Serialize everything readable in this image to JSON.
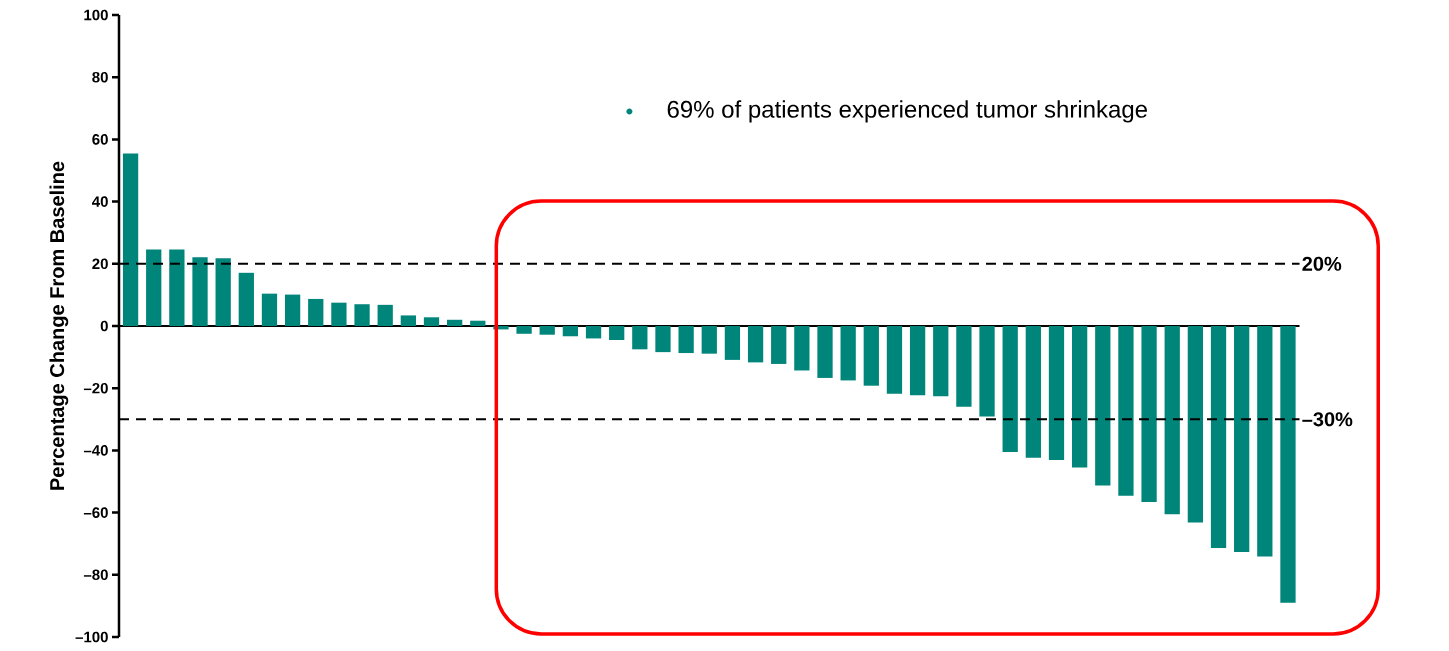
{
  "chart_data": {
    "type": "bar",
    "ylabel": "Percentage Change From Baseline",
    "categories": [
      null,
      null,
      null,
      null,
      null,
      null,
      null,
      null,
      null,
      null,
      null,
      null,
      null,
      null,
      null,
      null,
      null,
      null,
      null,
      null,
      null,
      null,
      null,
      null,
      null,
      null,
      null,
      null,
      null,
      null,
      null,
      null,
      null,
      null,
      null,
      null,
      null,
      null,
      null,
      null,
      null,
      null,
      null,
      null,
      null,
      null,
      null,
      null,
      null,
      null,
      null
    ],
    "values": [
      55.5,
      24.6,
      24.6,
      22.1,
      21.8,
      17.1,
      10.4,
      10.1,
      8.7,
      7.5,
      7.0,
      6.8,
      3.4,
      2.8,
      2.0,
      1.7,
      -1.1,
      -2.5,
      -2.8,
      -3.3,
      -4.0,
      -4.5,
      -7.5,
      -8.4,
      -8.7,
      -8.9,
      -10.9,
      -11.7,
      -12.2,
      -14.3,
      -16.7,
      -17.5,
      -19.2,
      -21.8,
      -22.3,
      -22.6,
      -26.0,
      -29.1,
      -40.5,
      -42.4,
      -43.1,
      -45.5,
      -51.3,
      -54.6,
      -56.6,
      -60.5,
      -63.2,
      -71.4,
      -72.7,
      -74.1,
      -89.0
    ],
    "color": "#00857a",
    "ylim": [
      -100,
      100
    ],
    "yticks": [
      {
        "value": -100,
        "label": "–100"
      },
      {
        "value": -80,
        "label": "–80"
      },
      {
        "value": -60,
        "label": "–60"
      },
      {
        "value": -40,
        "label": "–40"
      },
      {
        "value": -20,
        "label": "–20"
      },
      0,
      20,
      40,
      60,
      80,
      100
    ],
    "ref_lines": [
      {
        "axis": "y",
        "value": 20,
        "label": "20%",
        "line_style": "dashed",
        "color": "#000000"
      },
      {
        "axis": "y",
        "value": -30,
        "label": "–30%",
        "line_style": "dashed",
        "color": "#000000"
      }
    ],
    "annotations": [
      "69% of patients experienced tumor shrinkage"
    ]
  }
}
